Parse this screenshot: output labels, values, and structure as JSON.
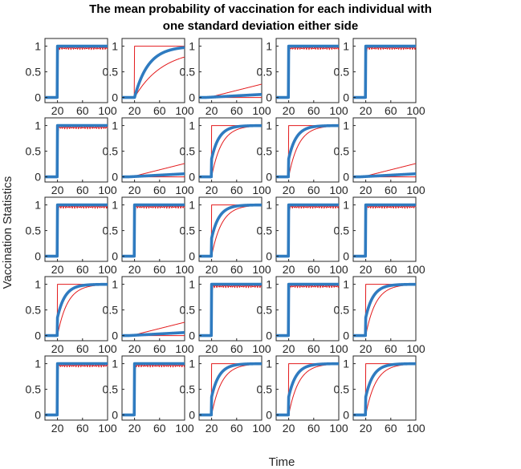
{
  "chart_data": {
    "type": "line",
    "title_lines": [
      "The mean probability of vaccination for each individual with",
      "one standard deviation either side"
    ],
    "xlabel": "Time",
    "ylabel": "Vaccination Statistics",
    "grid": "5x5 small multiples",
    "xlim": [
      0,
      100
    ],
    "ylim": [
      -0.1,
      1.15
    ],
    "xticks": [
      20,
      60,
      100
    ],
    "yticks": [
      0,
      0.5,
      1
    ],
    "colors": {
      "mean": "#2f7bc0",
      "band": "#e31a1c"
    },
    "series_names": [
      "mean",
      "mean + 1 sd",
      "mean - 1 sd"
    ],
    "panels": [
      {
        "row": 1,
        "col": 1,
        "type": "fast"
      },
      {
        "row": 1,
        "col": 2,
        "type": "moderate"
      },
      {
        "row": 1,
        "col": 3,
        "type": "never"
      },
      {
        "row": 1,
        "col": 4,
        "type": "fast"
      },
      {
        "row": 1,
        "col": 5,
        "type": "fast"
      },
      {
        "row": 2,
        "col": 1,
        "type": "fast"
      },
      {
        "row": 2,
        "col": 2,
        "type": "never"
      },
      {
        "row": 2,
        "col": 3,
        "type": "smooth"
      },
      {
        "row": 2,
        "col": 4,
        "type": "smooth"
      },
      {
        "row": 2,
        "col": 5,
        "type": "never"
      },
      {
        "row": 3,
        "col": 1,
        "type": "fast"
      },
      {
        "row": 3,
        "col": 2,
        "type": "fast"
      },
      {
        "row": 3,
        "col": 3,
        "type": "smooth"
      },
      {
        "row": 3,
        "col": 4,
        "type": "fast"
      },
      {
        "row": 3,
        "col": 5,
        "type": "fast"
      },
      {
        "row": 4,
        "col": 1,
        "type": "smooth"
      },
      {
        "row": 4,
        "col": 2,
        "type": "never"
      },
      {
        "row": 4,
        "col": 3,
        "type": "fast"
      },
      {
        "row": 4,
        "col": 4,
        "type": "fast"
      },
      {
        "row": 4,
        "col": 5,
        "type": "smooth"
      },
      {
        "row": 5,
        "col": 1,
        "type": "fast"
      },
      {
        "row": 5,
        "col": 2,
        "type": "fast"
      },
      {
        "row": 5,
        "col": 3,
        "type": "smooth"
      },
      {
        "row": 5,
        "col": 4,
        "type": "smooth"
      },
      {
        "row": 5,
        "col": 5,
        "type": "smooth"
      }
    ]
  }
}
